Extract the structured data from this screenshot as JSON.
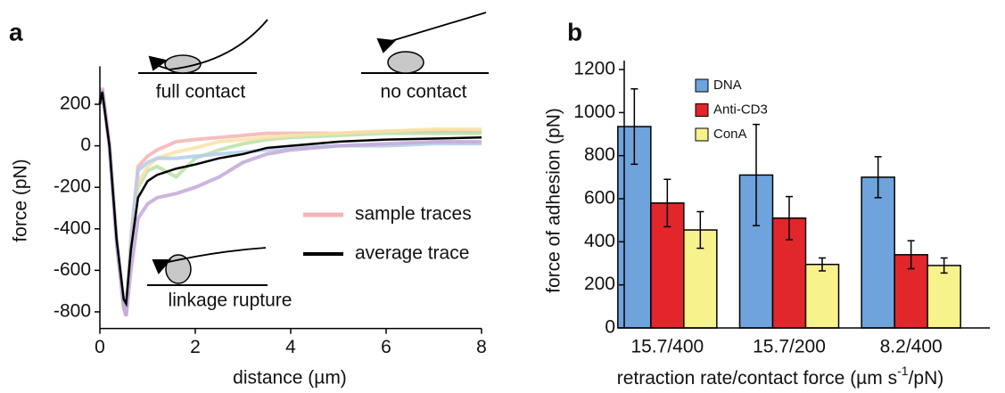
{
  "chart_data": [
    {
      "type": "line",
      "panel_label": "a",
      "xlabel": "distance (µm)",
      "ylabel": "force (pN)",
      "annotations": [
        "full contact",
        "no contact",
        "linkage rupture"
      ],
      "x": [
        0,
        0.05,
        0.2,
        0.35,
        0.5,
        0.55,
        0.65,
        0.8,
        1.0,
        1.2,
        1.6,
        2,
        2.5,
        3,
        3.5,
        4,
        5,
        6,
        7,
        8
      ],
      "series": [
        {
          "name": "sample traces",
          "colors": [
            "#f6b3b3",
            "#b8e0a8",
            "#f8e3a6",
            "#b3cdea",
            "#c2a8d8"
          ],
          "traces": [
            [
              200,
              280,
              20,
              -450,
              -780,
              -820,
              -450,
              -100,
              -50,
              -20,
              20,
              30,
              40,
              50,
              60,
              60,
              60,
              70,
              70,
              70
            ],
            [
              200,
              270,
              10,
              -460,
              -760,
              -800,
              -480,
              -200,
              -120,
              -100,
              -150,
              -60,
              -20,
              10,
              30,
              40,
              50,
              60,
              60,
              60
            ],
            [
              200,
              260,
              10,
              -440,
              -750,
              -800,
              -470,
              -180,
              -100,
              -60,
              -30,
              -10,
              20,
              30,
              40,
              50,
              60,
              70,
              80,
              80
            ],
            [
              200,
              265,
              0,
              -450,
              -760,
              -790,
              -480,
              -120,
              -80,
              -60,
              -60,
              -50,
              -40,
              -30,
              -20,
              -10,
              0,
              0,
              10,
              10
            ],
            [
              200,
              270,
              0,
              -470,
              -780,
              -820,
              -600,
              -350,
              -280,
              -250,
              -230,
              -200,
              -150,
              -80,
              -40,
              -20,
              0,
              10,
              20,
              20
            ]
          ]
        },
        {
          "name": "average trace",
          "color": "#000000",
          "values": [
            200,
            260,
            0,
            -450,
            -740,
            -760,
            -500,
            -250,
            -170,
            -140,
            -110,
            -90,
            -60,
            -40,
            -10,
            0,
            20,
            30,
            35,
            40
          ]
        }
      ],
      "xlim": [
        0,
        8
      ],
      "xticks": [
        0,
        2,
        4,
        6,
        8
      ],
      "ylim": [
        -880,
        340
      ],
      "yticks": [
        -800,
        -600,
        -400,
        -200,
        0,
        200
      ]
    },
    {
      "type": "bar",
      "panel_label": "b",
      "ylabel": "force of adhesion (pN)",
      "xlabel": [
        "retraction rate/contact force (µm s",
        "-1",
        "/pN)"
      ],
      "categories": [
        "15.7/400",
        "15.7/200",
        "8.2/400"
      ],
      "series": [
        {
          "name": "DNA",
          "color": "#6ea3dc",
          "values": [
            935,
            710,
            700
          ],
          "errors": [
            175,
            235,
            95
          ]
        },
        {
          "name": "Anti-CD3",
          "color": "#e1262c",
          "values": [
            580,
            510,
            340
          ],
          "errors": [
            110,
            100,
            65
          ]
        },
        {
          "name": "ConA",
          "color": "#f8f28c",
          "values": [
            455,
            295,
            290
          ],
          "errors": [
            85,
            30,
            35
          ]
        }
      ],
      "ylim": [
        0,
        1200
      ],
      "yticks": [
        0,
        200,
        400,
        600,
        800,
        1000,
        1200
      ]
    }
  ]
}
